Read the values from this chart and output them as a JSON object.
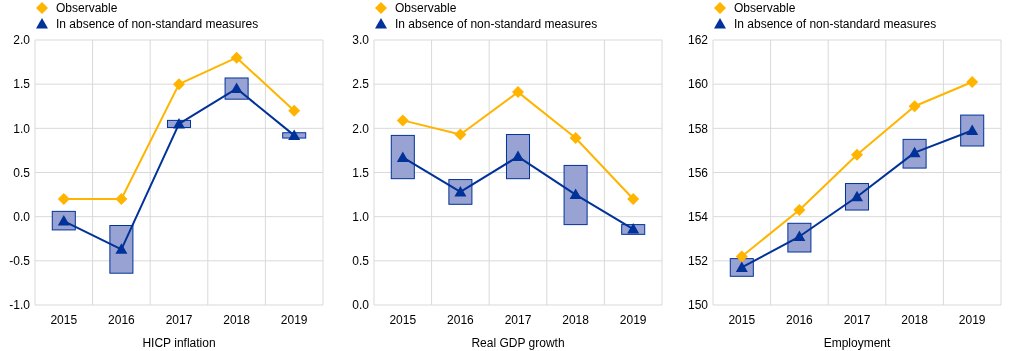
{
  "chart_data": [
    {
      "type": "line",
      "xlabel": "HICP inflation",
      "categories": [
        "2015",
        "2016",
        "2017",
        "2018",
        "2019"
      ],
      "ylim": [
        -1,
        2
      ],
      "yticks": [
        {
          "value": -1,
          "label": "-1.0"
        },
        {
          "value": -0.5,
          "label": "-0.5"
        },
        {
          "value": 0,
          "label": "0.0"
        },
        {
          "value": 0.5,
          "label": "0.5"
        },
        {
          "value": 1,
          "label": "1.0"
        },
        {
          "value": 1.5,
          "label": "1.5"
        },
        {
          "value": 2,
          "label": "2.0"
        }
      ],
      "grid": true,
      "legend": "top left",
      "series": [
        {
          "type": "bar",
          "color": "#99a3d3",
          "base": [
            -0.15,
            -0.64,
            1.01,
            1.33,
            0.89
          ],
          "values": [
            0.21,
            0.54,
            0.08,
            0.24,
            0.06
          ]
        },
        {
          "name": "Observable",
          "color": "#ffb400",
          "marker": "diamond",
          "values": [
            0.2,
            0.2,
            1.5,
            1.8,
            1.2
          ]
        },
        {
          "name": "In absence of non-standard measures",
          "color": "#003299",
          "marker": "triangle",
          "values": [
            -0.05,
            -0.37,
            1.05,
            1.45,
            0.92
          ]
        }
      ]
    },
    {
      "type": "line",
      "xlabel": "Real GDP growth",
      "categories": [
        "2015",
        "2016",
        "2017",
        "2018",
        "2019"
      ],
      "ylim": [
        0,
        3
      ],
      "yticks": [
        {
          "value": 0,
          "label": "0.0"
        },
        {
          "value": 0.5,
          "label": "0.5"
        },
        {
          "value": 1,
          "label": "1.0"
        },
        {
          "value": 1.5,
          "label": "1.5"
        },
        {
          "value": 2,
          "label": "2.0"
        },
        {
          "value": 2.5,
          "label": "2.5"
        },
        {
          "value": 3,
          "label": "3.0"
        }
      ],
      "grid": true,
      "legend": "top left",
      "series": [
        {
          "type": "bar",
          "color": "#99a3d3",
          "base": [
            1.43,
            1.14,
            1.43,
            0.91,
            0.8
          ],
          "values": [
            0.49,
            0.28,
            0.5,
            0.67,
            0.11
          ]
        },
        {
          "name": "Observable",
          "color": "#ffb400",
          "marker": "diamond",
          "values": [
            2.09,
            1.93,
            2.41,
            1.89,
            1.2
          ]
        },
        {
          "name": "In absence of non-standard measures",
          "color": "#003299",
          "marker": "triangle",
          "values": [
            1.67,
            1.28,
            1.68,
            1.25,
            0.86
          ]
        }
      ]
    },
    {
      "type": "line",
      "xlabel": "Employment",
      "categories": [
        "2015",
        "2016",
        "2017",
        "2018",
        "2019"
      ],
      "ylim": [
        150,
        162
      ],
      "yticks": [
        150,
        152,
        154,
        156,
        158,
        160,
        162
      ],
      "grid": true,
      "legend": "top left",
      "series": [
        {
          "type": "bar",
          "color": "#99a3d3",
          "base": [
            151.3,
            152.4,
            154.3,
            156.2,
            157.2
          ],
          "values": [
            0.8,
            1.3,
            1.2,
            1.3,
            1.4
          ]
        },
        {
          "name": "Observable",
          "color": "#ffb400",
          "marker": "diamond",
          "values": [
            152.2,
            154.3,
            156.8,
            159.0,
            160.1
          ]
        },
        {
          "name": "In absence of non-standard measures",
          "color": "#003299",
          "marker": "triangle",
          "values": [
            151.7,
            153.1,
            154.9,
            156.9,
            157.9
          ]
        }
      ]
    }
  ]
}
